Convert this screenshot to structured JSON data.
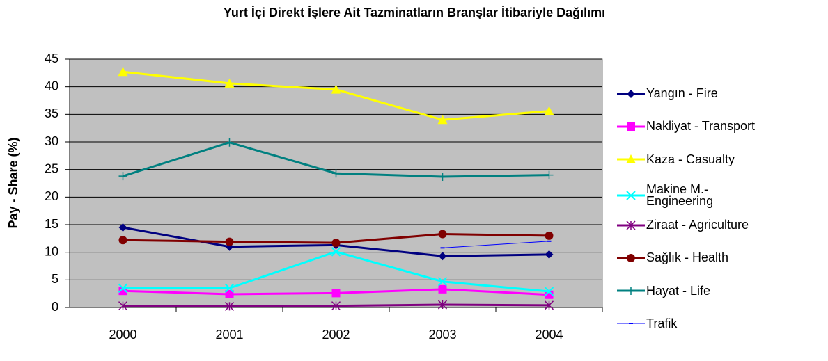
{
  "chart_data": {
    "type": "line",
    "title": "Yurt İçi Direkt İşlere Ait Tazminatların Branşlar İtibariyle Dağılımı",
    "y_label": "Pay - Share (%)",
    "categories": [
      "2000",
      "2001",
      "2002",
      "2003",
      "2004"
    ],
    "ylim": [
      0,
      45
    ],
    "yticks": [
      0,
      5,
      10,
      15,
      20,
      25,
      30,
      35,
      40,
      45
    ],
    "grid": true,
    "legend": "right",
    "series": [
      {
        "name": "Yangın - Fire",
        "color": "#000080",
        "marker": "diamond",
        "values": [
          14.5,
          11.0,
          11.3,
          9.3,
          9.6
        ]
      },
      {
        "name": "Nakliyat - Transport",
        "color": "#ff00ff",
        "marker": "square",
        "values": [
          3.0,
          2.4,
          2.6,
          3.3,
          2.3
        ]
      },
      {
        "name": "Kaza - Casualty",
        "color": "#ffff00",
        "marker": "triangle",
        "values": [
          42.7,
          40.6,
          39.5,
          34.0,
          35.6
        ]
      },
      {
        "name": "Makine M.- Engineering",
        "color": "#00ffff",
        "marker": "x",
        "values": [
          3.5,
          3.5,
          10.1,
          4.7,
          2.9
        ]
      },
      {
        "name": "Ziraat - Agriculture",
        "color": "#800080",
        "marker": "star",
        "values": [
          0.3,
          0.2,
          0.3,
          0.5,
          0.4
        ]
      },
      {
        "name": "Sağlık - Health",
        "color": "#800000",
        "marker": "circle",
        "values": [
          12.2,
          11.9,
          11.7,
          13.3,
          13.0
        ]
      },
      {
        "name": "Hayat - Life",
        "color": "#008080",
        "marker": "plus",
        "values": [
          23.8,
          29.9,
          24.3,
          23.7,
          24.0
        ]
      },
      {
        "name": "Trafik",
        "color": "#0000ff",
        "marker": "dash",
        "values": [
          null,
          null,
          null,
          10.8,
          12.0
        ]
      }
    ]
  }
}
